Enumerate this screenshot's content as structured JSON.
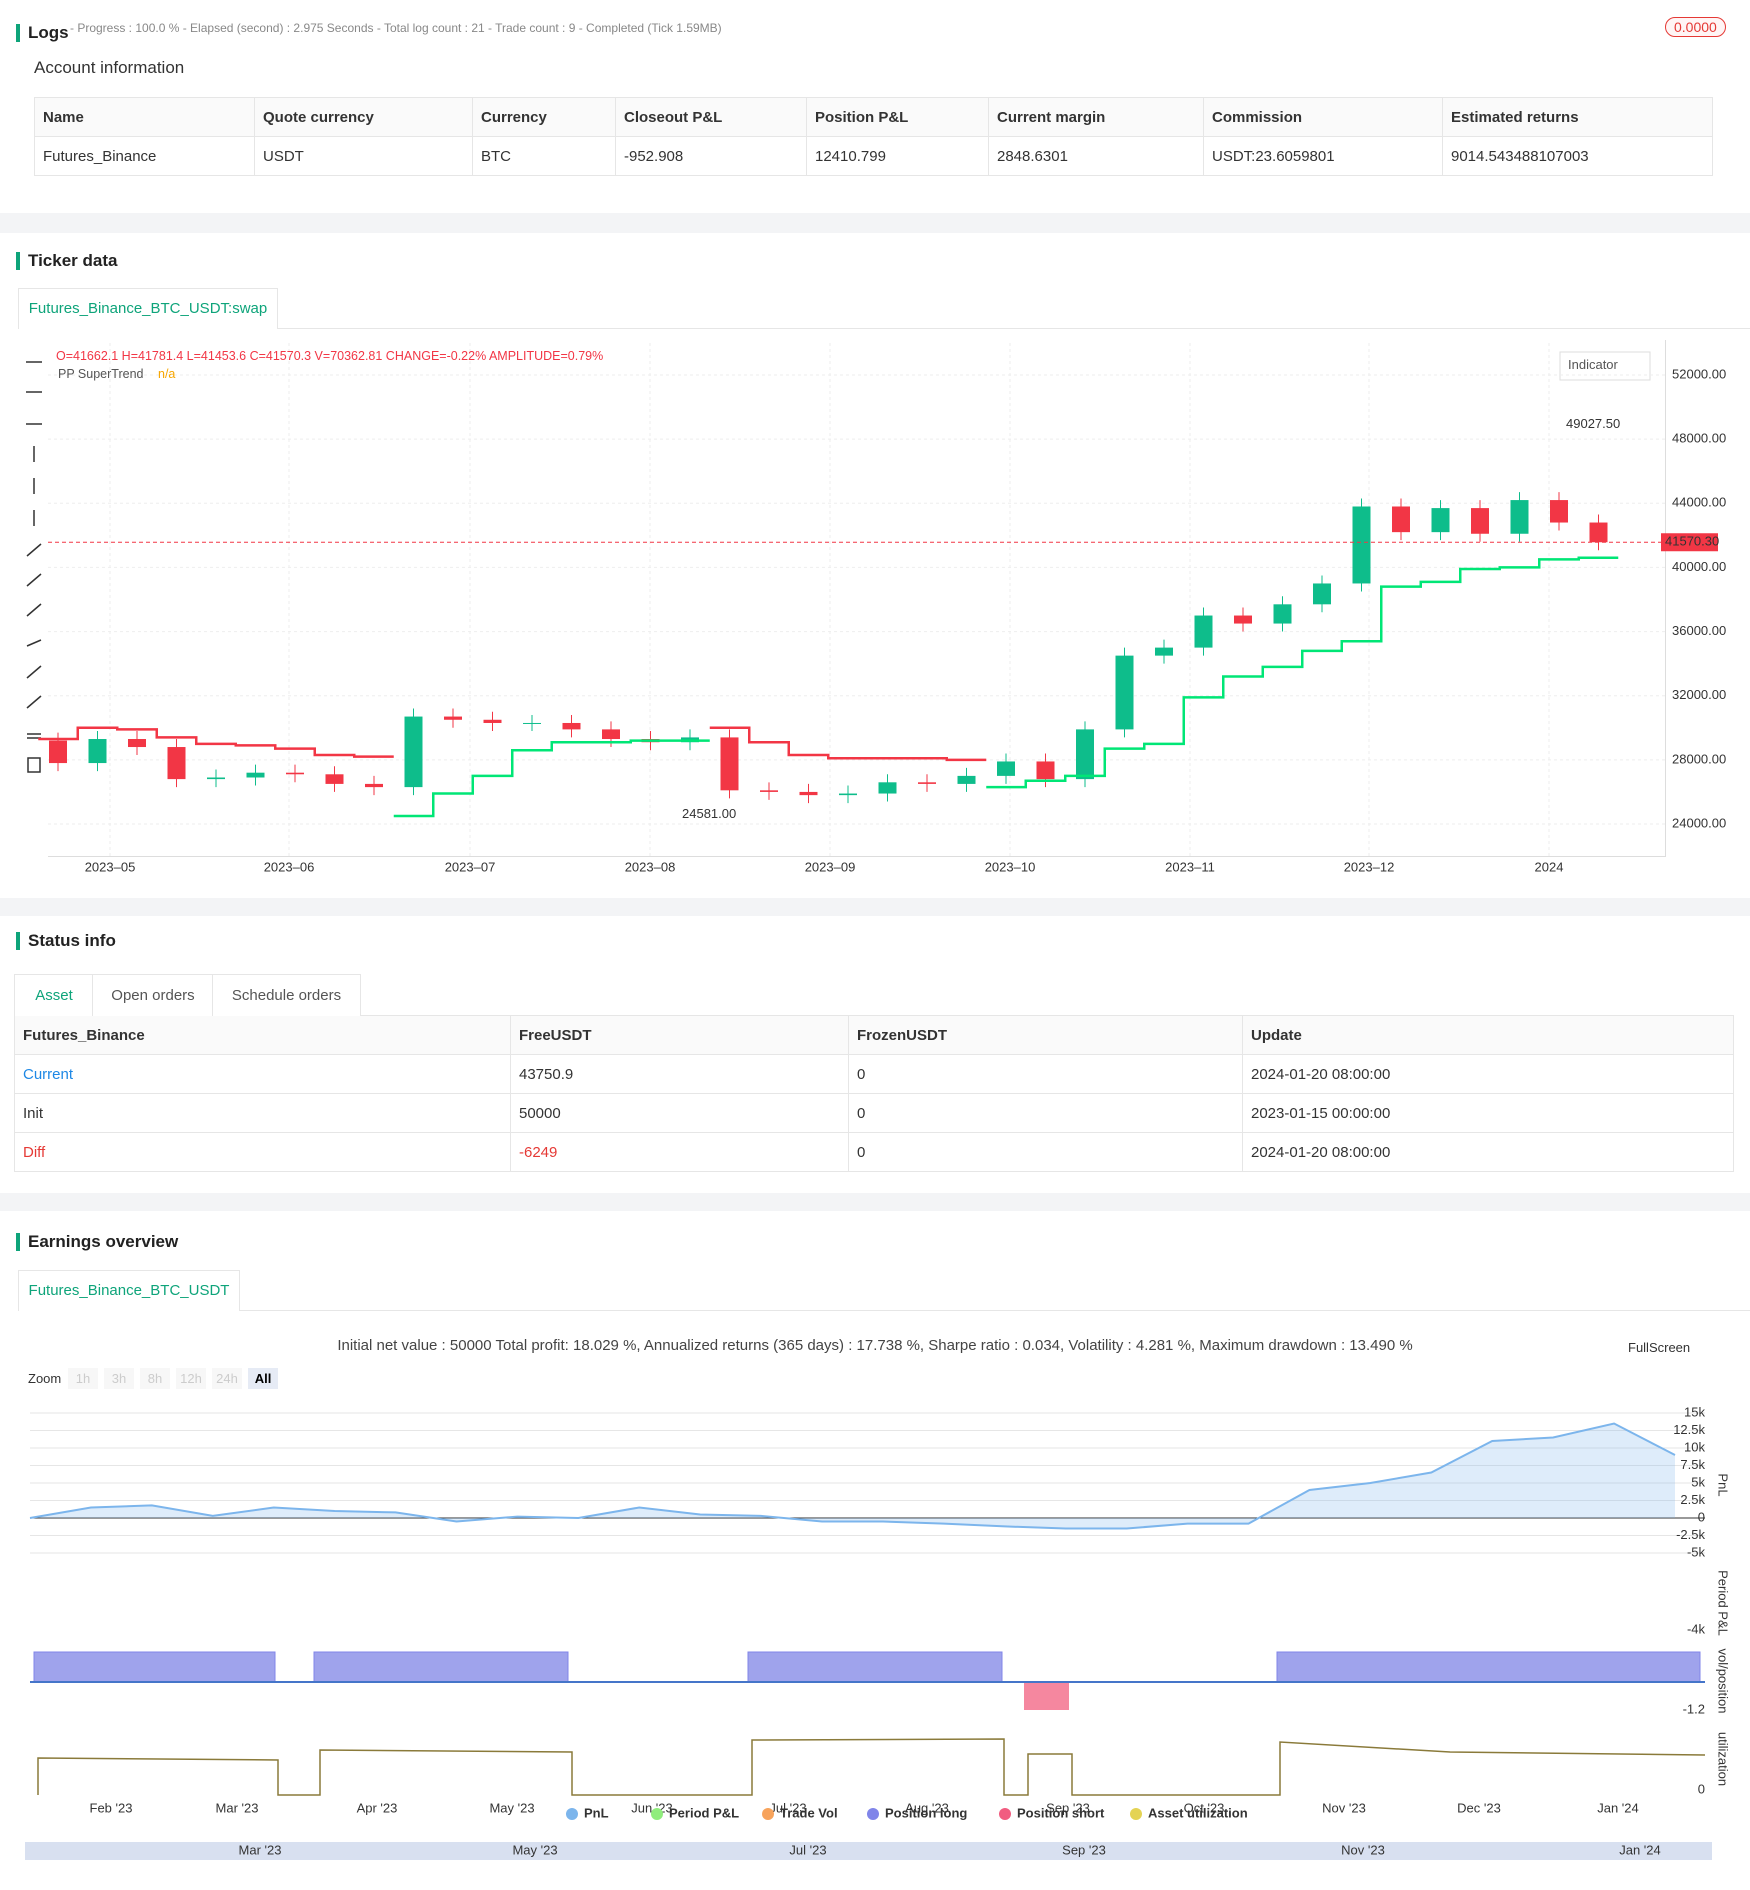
{
  "logs": {
    "title": "Logs",
    "status": "- Progress : 100.0 % - Elapsed (second) : 2.975  Seconds - Total log count : 21 - Trade count : 9 - Completed (Tick 1.59MB)",
    "badge": "0.0000"
  },
  "account": {
    "title": "Account information",
    "headers": [
      "Name",
      "Quote currency",
      "Currency",
      "Closeout P&L",
      "Position P&L",
      "Current margin",
      "Commission",
      "Estimated returns"
    ],
    "rows": [
      [
        "Futures_Binance",
        "USDT",
        "BTC",
        "-952.908",
        "12410.799",
        "2848.6301",
        "USDT:23.6059801",
        "9014.543488107003"
      ]
    ]
  },
  "ticker": {
    "title": "Ticker data",
    "tab": "Futures_Binance_BTC_USDT:swap",
    "ohlc": "O=41662.1 H=41781.4 L=41453.6 C=41570.3 V=70362.81 CHANGE=-0.22% AMPLITUDE=0.79%",
    "indicator_name": "PP SuperTrend",
    "indicator_value": "n/a",
    "indicator_button": "Indicator",
    "last_price": {
      "value": 41570.3,
      "label": "41570.30"
    },
    "high_note": {
      "value": 49027.5,
      "label": "49027.50"
    },
    "low_note": {
      "value": 24581,
      "label": "24581.00"
    },
    "chart_data": {
      "type": "candlestick",
      "ylim": [
        22000,
        53500
      ],
      "yticks": [
        {
          "value": 52000,
          "label": "52000.00"
        },
        {
          "value": 48000,
          "label": "48000.00"
        },
        {
          "value": 44000,
          "label": "44000.00"
        },
        {
          "value": 40000,
          "label": "40000.00"
        },
        {
          "value": 36000,
          "label": "36000.00"
        },
        {
          "value": 32000,
          "label": "32000.00"
        },
        {
          "value": 28000,
          "label": "28000.00"
        },
        {
          "value": 24000,
          "label": "24000.00"
        }
      ],
      "xlabels": [
        "2023–05",
        "2023–06",
        "2023–07",
        "2023–08",
        "2023–09",
        "2023–10",
        "2023–11",
        "2023–12",
        "2024"
      ],
      "open_first": 29200,
      "values": [
        27800,
        29300,
        28800,
        26800,
        26900,
        27200,
        27100,
        26500,
        26300,
        30700,
        30500,
        30300,
        30300,
        29900,
        29300,
        29100,
        29400,
        26100,
        26000,
        25800,
        25900,
        26600,
        26500,
        27000,
        27900,
        26800,
        29900,
        34500,
        35000,
        37000,
        36500,
        37700,
        39000,
        43800,
        42200,
        43700,
        42100,
        44200,
        42800,
        41570
      ],
      "series": [
        {
          "color": "#f23645",
          "values": [
            29300,
            30000,
            29900,
            29400,
            29000,
            28900,
            28700,
            28300,
            28200,
            null,
            null,
            null,
            null,
            null,
            null,
            null,
            null,
            30000,
            29100,
            28300,
            28100,
            28100,
            28100,
            28000,
            null,
            null,
            null,
            null,
            null,
            null,
            null,
            null,
            null,
            null,
            null,
            null,
            null,
            null,
            null,
            null
          ]
        },
        {
          "color": "#00e676",
          "values": [
            null,
            null,
            null,
            null,
            null,
            null,
            null,
            null,
            null,
            24500,
            25900,
            27000,
            28600,
            29100,
            29100,
            29200,
            29200,
            null,
            null,
            null,
            null,
            null,
            null,
            null,
            26300,
            26700,
            27000,
            28700,
            29000,
            31900,
            33200,
            33800,
            34800,
            35400,
            38800,
            39100,
            39900,
            40000,
            40500,
            40600
          ]
        }
      ]
    }
  },
  "status": {
    "title": "Status info",
    "tabs": [
      "Asset",
      "Open orders",
      "Schedule orders"
    ],
    "headers": [
      "Futures_Binance",
      "FreeUSDT",
      "FrozenUSDT",
      "Update"
    ],
    "rows": [
      [
        "Current",
        "43750.9",
        "0",
        "2024-01-20 08:00:00"
      ],
      [
        "Init",
        "50000",
        "0",
        "2023-01-15 00:00:00"
      ],
      [
        "Diff",
        "-6249",
        "0",
        "2024-01-20 08:00:00"
      ]
    ]
  },
  "earnings": {
    "title": "Earnings overview",
    "tab": "Futures_Binance_BTC_USDT",
    "summary": "Initial net value : 50000 Total profit: 18.029 %, Annualized returns (365 days) : 17.738 %, Sharpe ratio : 0.034, Volatility : 4.281 %, Maximum drawdown : 13.490 %",
    "fullscreen": "FullScreen",
    "zoom_label": "Zoom",
    "zoom_buttons": [
      "1h",
      "3h",
      "8h",
      "12h",
      "24h",
      "All"
    ],
    "axis_titles": [
      "PnL",
      "Period P&L",
      "vol/position",
      "utilization"
    ],
    "minor_labels": [
      "-4k",
      "-1.2",
      "0"
    ],
    "xlabels": [
      "Feb '23",
      "Mar '23",
      "Apr '23",
      "May '23",
      "Jun '23",
      "Jul '23",
      "Aug '23",
      "Sep '23",
      "Oct '23",
      "Nov '23",
      "Dec '23",
      "Jan '24"
    ],
    "legend": [
      {
        "name": "PnL",
        "color": "#7cb5ec"
      },
      {
        "name": "Period P&L",
        "color": "#90ed7d"
      },
      {
        "name": "Trade Vol",
        "color": "#f7a35c"
      },
      {
        "name": "Position long",
        "color": "#8085e9"
      },
      {
        "name": "Position short",
        "color": "#f15c80"
      },
      {
        "name": "Asset utilization",
        "color": "#e4d354"
      }
    ],
    "navigator": [
      "Mar '23",
      "May '23",
      "Jul '23",
      "Sep '23",
      "Nov '23",
      "Jan '24"
    ],
    "chart_data": {
      "type": "area",
      "ylim": [
        -5000,
        15000
      ],
      "color": "#7cb5ec",
      "yticks": [
        {
          "value": 15000,
          "label": "15k"
        },
        {
          "value": 12500,
          "label": "12.5k"
        },
        {
          "value": 10000,
          "label": "10k"
        },
        {
          "value": 7500,
          "label": "7.5k"
        },
        {
          "value": 5000,
          "label": "5k"
        },
        {
          "value": 2500,
          "label": "2.5k"
        },
        0,
        {
          "value": -2500,
          "label": "-2.5k"
        },
        {
          "value": -5000,
          "label": "-5k"
        }
      ],
      "values": [
        0,
        1500,
        1800,
        300,
        1500,
        1000,
        800,
        -500,
        200,
        0,
        1500,
        500,
        300,
        -500,
        -500,
        -800,
        -1200,
        -1500,
        -1500,
        -800,
        -800,
        4000,
        5000,
        6500,
        11000,
        11500,
        13500,
        9000
      ]
    }
  }
}
